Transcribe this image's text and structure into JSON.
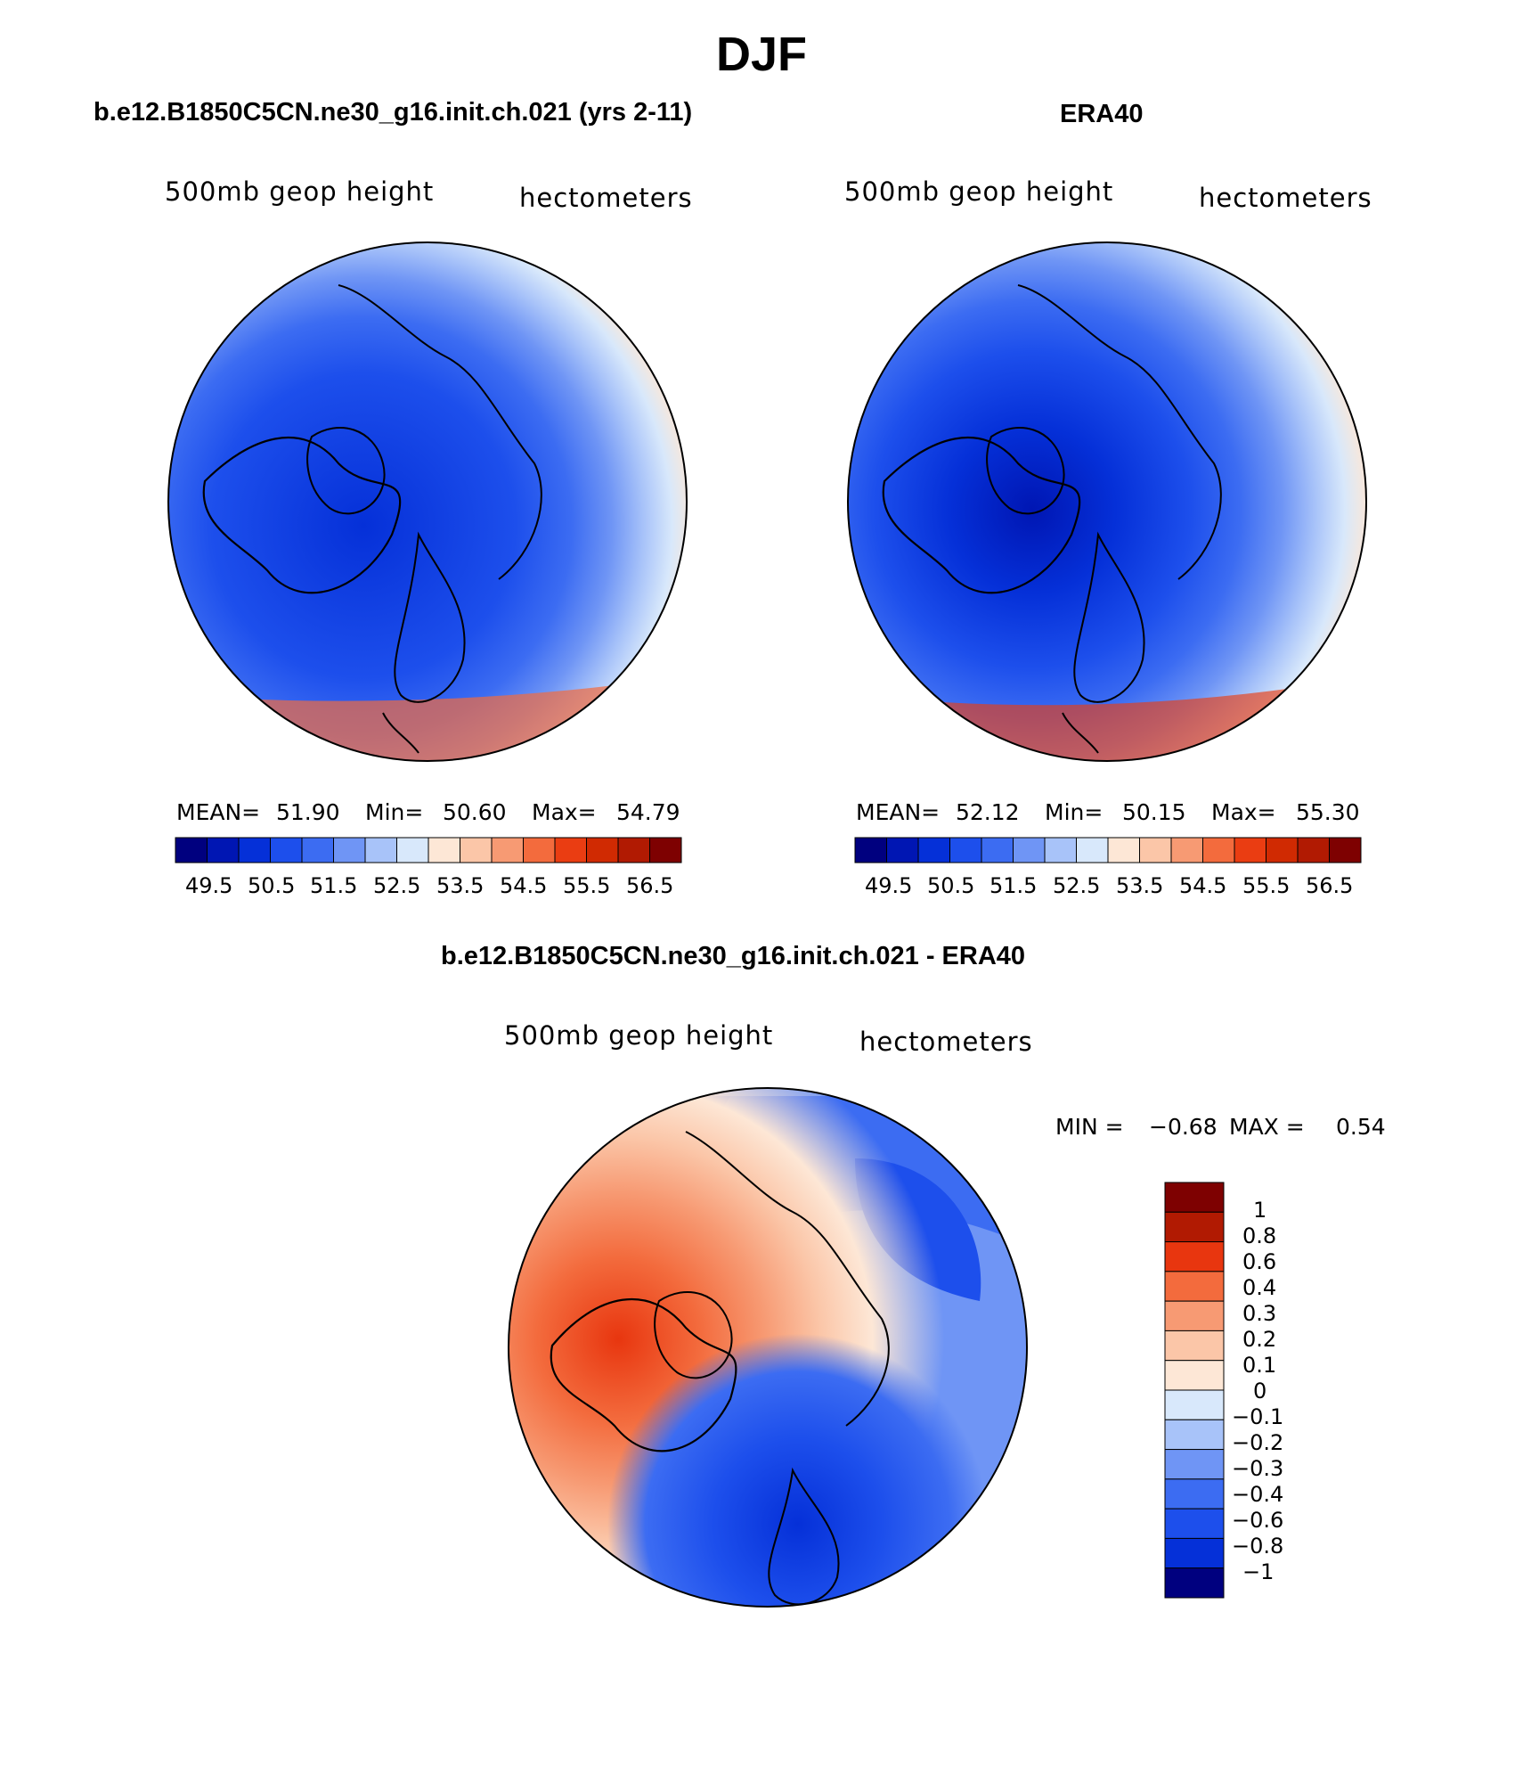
{
  "figure": {
    "title": "DJF",
    "colors": {
      "absolute_palette": [
        "#00007f",
        "#0016b3",
        "#0530d8",
        "#1d4fec",
        "#3c6cf2",
        "#6f95f5",
        "#a8c3f9",
        "#d8e8fb",
        "#fde7d6",
        "#fbc6a8",
        "#f79a73",
        "#f36b3d",
        "#ea3d12",
        "#d02a02",
        "#b11a02",
        "#7e0101"
      ],
      "diff_palette": [
        "#00007f",
        "#0530d8",
        "#1d4fec",
        "#3c6cf2",
        "#6f95f5",
        "#a8c3f9",
        "#d8e8fb",
        "#fde7d6",
        "#fbc6a8",
        "#f79a73",
        "#f36b3d",
        "#e8360f",
        "#b11a02",
        "#7e0101"
      ]
    }
  },
  "panels": {
    "model": {
      "title": "b.e12.B1850C5CN.ne30_g16.init.ch.021 (yrs 2-11)",
      "left_label": "500mb geop height",
      "right_label": "hectometers",
      "mean_label": "MEAN=",
      "mean": "51.90",
      "min_label": "Min=",
      "min": "50.60",
      "max_label": "Max=",
      "max": "54.79"
    },
    "obs": {
      "title": "ERA40",
      "left_label": "500mb geop height",
      "right_label": "hectometers",
      "mean_label": "MEAN=",
      "mean": "52.12",
      "min_label": "Min=",
      "min": "50.15",
      "max_label": "Max=",
      "max": "55.30"
    },
    "diff": {
      "title": "b.e12.B1850C5CN.ne30_g16.init.ch.021 - ERA40",
      "left_label": "500mb geop height",
      "right_label": "hectometers",
      "min_label": "MIN =",
      "min": "−0.68",
      "max_label": "MAX =",
      "max": "0.54"
    }
  },
  "chart_data": [
    {
      "type": "heatmap",
      "projection": "north-polar-stereographic",
      "title": "b.e12.B1850C5CN.ne30_g16.init.ch.021 (yrs 2-11)",
      "field": "500mb geop height",
      "units": "hectometers",
      "mean": 51.9,
      "min": 50.6,
      "max": 54.79,
      "colorbar_levels": [
        49.5,
        50.0,
        50.5,
        51.0,
        51.5,
        52.0,
        52.5,
        53.0,
        53.5,
        54.0,
        54.5,
        55.0,
        55.5,
        56.0,
        56.5
      ],
      "colorbar_ticks": [
        "49.5",
        "50.5",
        "51.5",
        "52.5",
        "53.5",
        "54.5",
        "55.5",
        "56.5"
      ]
    },
    {
      "type": "heatmap",
      "projection": "north-polar-stereographic",
      "title": "ERA40",
      "field": "500mb geop height",
      "units": "hectometers",
      "mean": 52.12,
      "min": 50.15,
      "max": 55.3,
      "colorbar_levels": [
        49.5,
        50.0,
        50.5,
        51.0,
        51.5,
        52.0,
        52.5,
        53.0,
        53.5,
        54.0,
        54.5,
        55.0,
        55.5,
        56.0,
        56.5
      ],
      "colorbar_ticks": [
        "49.5",
        "50.5",
        "51.5",
        "52.5",
        "53.5",
        "54.5",
        "55.5",
        "56.5"
      ]
    },
    {
      "type": "heatmap",
      "projection": "north-polar-stereographic",
      "title": "b.e12.B1850C5CN.ne30_g16.init.ch.021 - ERA40",
      "field": "500mb geop height",
      "units": "hectometers",
      "min": -0.68,
      "max": 0.54,
      "colorbar_levels": [
        1,
        0.8,
        0.6,
        0.4,
        0.3,
        0.2,
        0.1,
        0,
        -0.1,
        -0.2,
        -0.3,
        -0.4,
        -0.6,
        -0.8,
        -1
      ],
      "colorbar_ticks": [
        "1",
        "0.8",
        "0.6",
        "0.4",
        "0.3",
        "0.2",
        "0.1",
        "0",
        "−0.1",
        "−0.2",
        "−0.3",
        "−0.4",
        "−0.6",
        "−0.8",
        "−1"
      ]
    }
  ]
}
